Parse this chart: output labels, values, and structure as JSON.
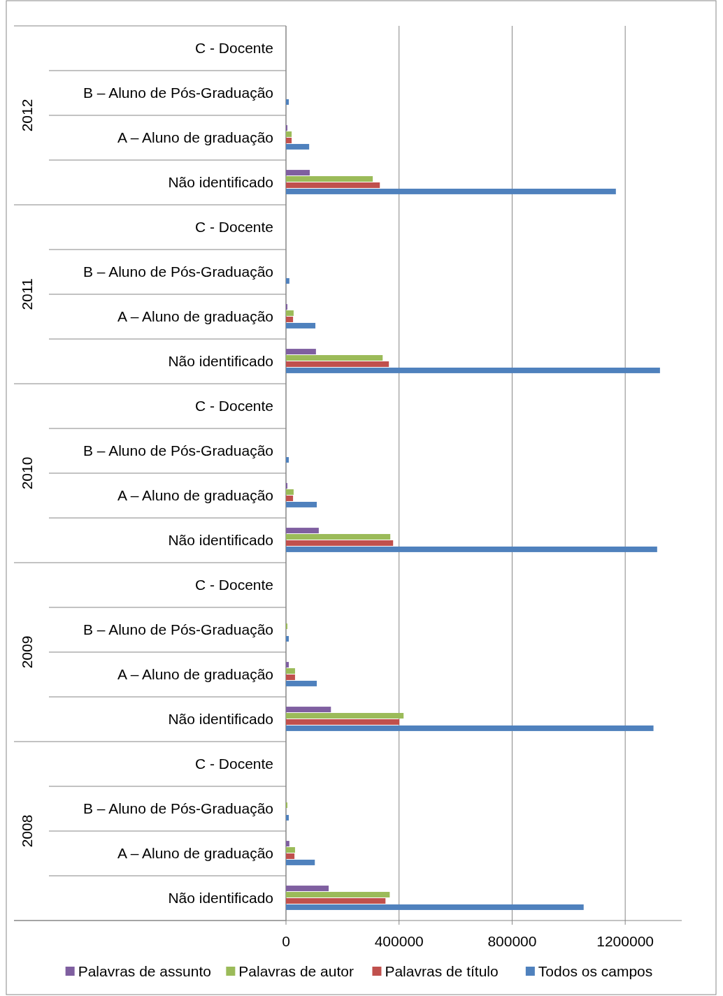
{
  "chart_data": {
    "type": "bar",
    "orientation": "horizontal",
    "categories": [
      "C - Docente",
      "B – Aluno de Pós-Graduação",
      "A – Aluno de graduação",
      "Não identificado",
      "C - Docente",
      "B – Aluno de Pós-Graduação",
      "A – Aluno de graduação",
      "Não identificado",
      "C - Docente",
      "B – Aluno de Pós-Graduação",
      "A – Aluno de graduação",
      "Não identificado",
      "C - Docente",
      "B – Aluno de Pós-Graduação",
      "A – Aluno de graduação",
      "Não identificado",
      "C - Docente",
      "B – Aluno de Pós-Graduação",
      "A – Aluno de graduação",
      "Não identificado"
    ],
    "annotations": [
      "2012",
      "2011",
      "2010",
      "2009",
      "2008"
    ],
    "series": [
      {
        "name": "Palavras de assunto",
        "color": "#7f5fa0",
        "values": [
          0,
          0,
          5000,
          84000,
          0,
          0,
          5000,
          106000,
          0,
          0,
          5000,
          116000,
          0,
          0,
          10000,
          159000,
          0,
          0,
          12000,
          151000
        ]
      },
      {
        "name": "Palavras de autor",
        "color": "#9bbb59",
        "values": [
          0,
          0,
          20000,
          307000,
          0,
          0,
          27000,
          342000,
          0,
          0,
          27000,
          369000,
          0,
          5000,
          32000,
          416000,
          0,
          5000,
          32000,
          367000
        ]
      },
      {
        "name": "Palavras de título",
        "color": "#c0504d",
        "values": [
          0,
          0,
          20000,
          332000,
          0,
          0,
          25000,
          364000,
          0,
          0,
          25000,
          379000,
          0,
          0,
          32000,
          401000,
          0,
          0,
          30000,
          352000
        ]
      },
      {
        "name": "Todos os campos",
        "color": "#4f81bd",
        "values": [
          0,
          10000,
          82000,
          1167000,
          0,
          12000,
          104000,
          1323000,
          0,
          10000,
          109000,
          1313000,
          0,
          10000,
          109000,
          1300000,
          0,
          10000,
          102000,
          1053000
        ]
      }
    ],
    "xlim": [
      0,
      1400000
    ],
    "xticks": [
      0,
      400000,
      800000,
      1200000
    ],
    "grid": "x",
    "legend": "bottom"
  }
}
